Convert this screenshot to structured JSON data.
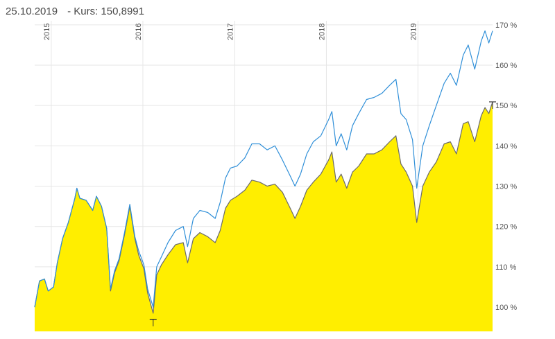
{
  "header": {
    "date": "25.10.2019",
    "price_label": "- Kurs: 150,8991"
  },
  "chart_data": {
    "type": "area",
    "x_tick_labels": [
      "2015",
      "2016",
      "2017",
      "2018",
      "2019"
    ],
    "x_tick_dates": [
      "2015-01-01",
      "2016-01-01",
      "2017-01-01",
      "2018-01-01",
      "2019-01-01"
    ],
    "x_range": [
      "2014-10-27",
      "2019-10-25"
    ],
    "y_tick_labels": [
      "100 %",
      "110 %",
      "120 %",
      "130 %",
      "140 %",
      "150 %",
      "160 %",
      "170 %"
    ],
    "y_ticks": [
      100,
      110,
      120,
      130,
      140,
      150,
      160,
      170
    ],
    "ylim": [
      94,
      171
    ],
    "grid": true,
    "y_axis_side": "right",
    "colors": {
      "area_fill": "#ffee00",
      "area_line": "#6b6b6b",
      "benchmark_line": "#2f8fd8",
      "grid": "#e6e6e6",
      "marker": "#333333"
    },
    "series": [
      {
        "role": "area",
        "x": [
          "2014-10-27",
          "2014-11-15",
          "2014-12-05",
          "2014-12-20",
          "2015-01-10",
          "2015-01-25",
          "2015-02-15",
          "2015-03-10",
          "2015-04-05",
          "2015-04-13",
          "2015-04-25",
          "2015-05-20",
          "2015-06-15",
          "2015-06-30",
          "2015-07-20",
          "2015-08-10",
          "2015-08-25",
          "2015-09-10",
          "2015-09-28",
          "2015-10-20",
          "2015-11-10",
          "2015-11-30",
          "2015-12-15",
          "2016-01-05",
          "2016-01-20",
          "2016-02-11",
          "2016-02-25",
          "2016-03-15",
          "2016-04-10",
          "2016-05-10",
          "2016-06-10",
          "2016-06-27",
          "2016-07-20",
          "2016-08-15",
          "2016-09-15",
          "2016-10-15",
          "2016-11-04",
          "2016-11-25",
          "2016-12-15",
          "2017-01-10",
          "2017-02-10",
          "2017-03-10",
          "2017-04-10",
          "2017-05-10",
          "2017-06-10",
          "2017-07-10",
          "2017-08-10",
          "2017-08-29",
          "2017-09-20",
          "2017-10-15",
          "2017-11-10",
          "2017-12-10",
          "2018-01-10",
          "2018-01-23",
          "2018-02-09",
          "2018-03-01",
          "2018-03-23",
          "2018-04-15",
          "2018-05-10",
          "2018-06-10",
          "2018-07-10",
          "2018-08-10",
          "2018-09-10",
          "2018-10-05",
          "2018-10-25",
          "2018-11-15",
          "2018-12-10",
          "2018-12-27",
          "2019-01-20",
          "2019-02-15",
          "2019-03-15",
          "2019-04-15",
          "2019-05-10",
          "2019-06-03",
          "2019-06-30",
          "2019-07-20",
          "2019-08-15",
          "2019-09-10",
          "2019-09-25",
          "2019-10-10",
          "2019-10-25"
        ],
        "values": [
          100.0,
          106.5,
          107.0,
          104.0,
          105.0,
          111.0,
          117.0,
          121.0,
          127.0,
          129.5,
          127.0,
          126.5,
          124.0,
          127.5,
          125.0,
          119.5,
          104.0,
          108.5,
          111.5,
          118.0,
          125.0,
          117.0,
          113.0,
          109.5,
          103.5,
          98.5,
          108.0,
          110.5,
          113.0,
          115.5,
          116.0,
          111.0,
          117.0,
          118.5,
          117.5,
          116.0,
          119.0,
          124.5,
          126.5,
          127.5,
          129.0,
          131.5,
          131.0,
          130.0,
          130.5,
          128.5,
          124.5,
          122.0,
          125.0,
          129.0,
          131.0,
          133.0,
          136.5,
          138.5,
          131.0,
          133.0,
          129.5,
          133.5,
          135.0,
          138.0,
          138.0,
          139.0,
          141.0,
          142.5,
          135.5,
          133.5,
          130.0,
          121.0,
          130.0,
          133.5,
          136.0,
          140.5,
          141.0,
          138.0,
          145.5,
          146.0,
          141.0,
          147.5,
          149.5,
          148.0,
          150.9
        ]
      },
      {
        "role": "benchmark",
        "x": [
          "2014-10-27",
          "2014-11-15",
          "2014-12-05",
          "2014-12-20",
          "2015-01-10",
          "2015-01-25",
          "2015-02-15",
          "2015-03-10",
          "2015-04-05",
          "2015-04-13",
          "2015-04-25",
          "2015-05-20",
          "2015-06-15",
          "2015-06-30",
          "2015-07-20",
          "2015-08-10",
          "2015-08-25",
          "2015-09-10",
          "2015-09-28",
          "2015-10-20",
          "2015-11-10",
          "2015-11-30",
          "2015-12-15",
          "2016-01-05",
          "2016-01-20",
          "2016-02-11",
          "2016-02-25",
          "2016-03-15",
          "2016-04-10",
          "2016-05-10",
          "2016-06-10",
          "2016-06-27",
          "2016-07-20",
          "2016-08-15",
          "2016-09-15",
          "2016-10-15",
          "2016-11-04",
          "2016-11-25",
          "2016-12-15",
          "2017-01-10",
          "2017-02-10",
          "2017-03-10",
          "2017-04-10",
          "2017-05-10",
          "2017-06-10",
          "2017-07-10",
          "2017-08-10",
          "2017-08-29",
          "2017-09-20",
          "2017-10-15",
          "2017-11-10",
          "2017-12-10",
          "2018-01-10",
          "2018-01-23",
          "2018-02-09",
          "2018-03-01",
          "2018-03-23",
          "2018-04-15",
          "2018-05-10",
          "2018-06-10",
          "2018-07-10",
          "2018-08-10",
          "2018-09-10",
          "2018-10-05",
          "2018-10-25",
          "2018-11-15",
          "2018-12-10",
          "2018-12-27",
          "2019-01-20",
          "2019-02-15",
          "2019-03-15",
          "2019-04-15",
          "2019-05-10",
          "2019-06-03",
          "2019-06-30",
          "2019-07-20",
          "2019-08-15",
          "2019-09-10",
          "2019-09-25",
          "2019-10-10",
          "2019-10-25"
        ],
        "values": [
          100.0,
          106.5,
          107.0,
          104.0,
          105.0,
          111.0,
          117.0,
          121.0,
          127.0,
          129.5,
          127.0,
          126.5,
          124.0,
          127.5,
          125.0,
          119.5,
          104.5,
          109.0,
          112.0,
          118.5,
          125.5,
          117.5,
          114.0,
          110.5,
          104.5,
          100.0,
          110.0,
          112.5,
          116.0,
          119.0,
          120.0,
          115.0,
          122.0,
          124.0,
          123.5,
          122.0,
          126.0,
          132.0,
          134.5,
          135.0,
          137.0,
          140.5,
          140.5,
          139.0,
          140.0,
          136.5,
          132.5,
          130.0,
          133.0,
          138.0,
          141.0,
          142.5,
          146.5,
          148.5,
          140.0,
          143.0,
          139.0,
          145.0,
          148.0,
          151.5,
          152.0,
          153.0,
          155.0,
          156.5,
          148.0,
          146.5,
          141.5,
          129.5,
          140.0,
          145.0,
          150.0,
          155.5,
          158.0,
          155.0,
          162.5,
          165.0,
          159.0,
          166.0,
          168.5,
          165.5,
          168.5
        ]
      }
    ],
    "markers": [
      {
        "x": "2016-02-11",
        "y": 97.0
      },
      {
        "x": "2019-10-25",
        "y": 150.9
      }
    ]
  }
}
